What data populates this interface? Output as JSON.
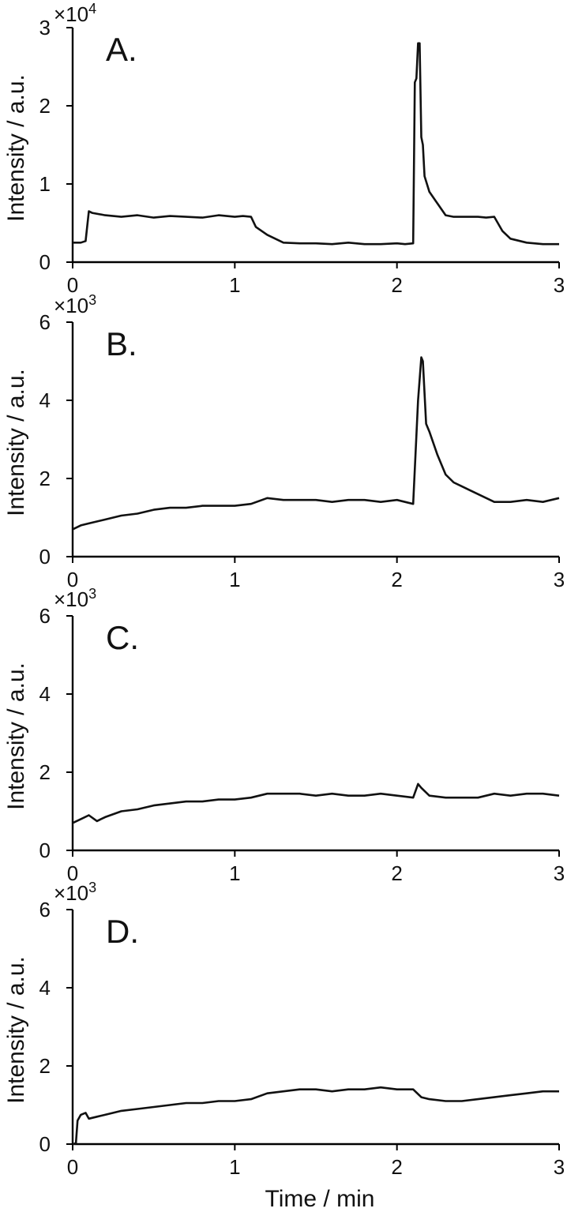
{
  "chart_data": [
    {
      "type": "line",
      "panel_label": "A.",
      "ylabel": "Intensity / a.u.",
      "multiplier": "×10",
      "multiplier_exp": "4",
      "xlim": [
        0,
        3
      ],
      "ylim": [
        0,
        3
      ],
      "xticks": [
        "0",
        "1",
        "2",
        "3"
      ],
      "yticks": [
        "0",
        "1",
        "2",
        "3"
      ],
      "series": [
        {
          "x": [
            0,
            0.05,
            0.08,
            0.1,
            0.12,
            0.2,
            0.3,
            0.4,
            0.5,
            0.6,
            0.7,
            0.8,
            0.9,
            1.0,
            1.05,
            1.1,
            1.13,
            1.2,
            1.3,
            1.4,
            1.5,
            1.6,
            1.7,
            1.8,
            1.9,
            2.0,
            2.05,
            2.1,
            2.11,
            2.12,
            2.13,
            2.14,
            2.15,
            2.16,
            2.17,
            2.2,
            2.25,
            2.3,
            2.35,
            2.4,
            2.5,
            2.55,
            2.6,
            2.65,
            2.7,
            2.8,
            2.9,
            3.0
          ],
          "y": [
            0.25,
            0.25,
            0.27,
            0.65,
            0.63,
            0.6,
            0.58,
            0.6,
            0.57,
            0.59,
            0.58,
            0.57,
            0.6,
            0.58,
            0.59,
            0.58,
            0.45,
            0.35,
            0.25,
            0.24,
            0.24,
            0.23,
            0.25,
            0.23,
            0.23,
            0.24,
            0.23,
            0.24,
            2.3,
            2.35,
            2.8,
            2.8,
            1.6,
            1.5,
            1.1,
            0.9,
            0.75,
            0.6,
            0.58,
            0.58,
            0.58,
            0.57,
            0.58,
            0.4,
            0.3,
            0.25,
            0.23,
            0.23
          ]
        }
      ]
    },
    {
      "type": "line",
      "panel_label": "B.",
      "ylabel": "Intensity / a.u.",
      "multiplier": "×10",
      "multiplier_exp": "3",
      "xlim": [
        0,
        3
      ],
      "ylim": [
        0,
        6
      ],
      "xticks": [
        "0",
        "1",
        "2",
        "3"
      ],
      "yticks": [
        "0",
        "2",
        "4",
        "6"
      ],
      "series": [
        {
          "x": [
            0,
            0.05,
            0.1,
            0.2,
            0.3,
            0.4,
            0.5,
            0.6,
            0.7,
            0.8,
            0.9,
            1.0,
            1.1,
            1.2,
            1.3,
            1.4,
            1.5,
            1.6,
            1.7,
            1.8,
            1.9,
            2.0,
            2.05,
            2.1,
            2.13,
            2.15,
            2.16,
            2.18,
            2.2,
            2.25,
            2.3,
            2.35,
            2.4,
            2.45,
            2.5,
            2.6,
            2.7,
            2.8,
            2.9,
            3.0
          ],
          "y": [
            0.7,
            0.8,
            0.85,
            0.95,
            1.05,
            1.1,
            1.2,
            1.25,
            1.25,
            1.3,
            1.3,
            1.3,
            1.35,
            1.5,
            1.45,
            1.45,
            1.45,
            1.4,
            1.45,
            1.45,
            1.4,
            1.45,
            1.4,
            1.35,
            4.0,
            5.1,
            5.0,
            3.4,
            3.2,
            2.6,
            2.1,
            1.9,
            1.8,
            1.7,
            1.6,
            1.4,
            1.4,
            1.45,
            1.4,
            1.5
          ]
        }
      ]
    },
    {
      "type": "line",
      "panel_label": "C.",
      "ylabel": "Intensity / a.u.",
      "multiplier": "×10",
      "multiplier_exp": "3",
      "xlim": [
        0,
        3
      ],
      "ylim": [
        0,
        6
      ],
      "xticks": [
        "0",
        "1",
        "2",
        "3"
      ],
      "yticks": [
        "0",
        "2",
        "4",
        "6"
      ],
      "series": [
        {
          "x": [
            0,
            0.05,
            0.1,
            0.15,
            0.2,
            0.3,
            0.4,
            0.5,
            0.6,
            0.7,
            0.8,
            0.9,
            1.0,
            1.1,
            1.2,
            1.3,
            1.4,
            1.5,
            1.6,
            1.7,
            1.8,
            1.9,
            2.0,
            2.1,
            2.13,
            2.15,
            2.2,
            2.3,
            2.4,
            2.5,
            2.6,
            2.7,
            2.8,
            2.9,
            3.0
          ],
          "y": [
            0.7,
            0.8,
            0.9,
            0.75,
            0.85,
            1.0,
            1.05,
            1.15,
            1.2,
            1.25,
            1.25,
            1.3,
            1.3,
            1.35,
            1.45,
            1.45,
            1.45,
            1.4,
            1.45,
            1.4,
            1.4,
            1.45,
            1.4,
            1.35,
            1.7,
            1.6,
            1.4,
            1.35,
            1.35,
            1.35,
            1.45,
            1.4,
            1.45,
            1.45,
            1.4
          ]
        }
      ]
    },
    {
      "type": "line",
      "panel_label": "D.",
      "ylabel": "Intensity / a.u.",
      "xlabel": "Time / min",
      "multiplier": "×10",
      "multiplier_exp": "3",
      "xlim": [
        0,
        3
      ],
      "ylim": [
        0,
        6
      ],
      "xticks": [
        "0",
        "1",
        "2",
        "3"
      ],
      "yticks": [
        "0",
        "2",
        "4",
        "6"
      ],
      "series": [
        {
          "x": [
            0,
            0.02,
            0.03,
            0.05,
            0.08,
            0.1,
            0.15,
            0.2,
            0.3,
            0.4,
            0.5,
            0.6,
            0.7,
            0.8,
            0.9,
            1.0,
            1.1,
            1.2,
            1.3,
            1.4,
            1.5,
            1.6,
            1.7,
            1.8,
            1.9,
            2.0,
            2.1,
            2.15,
            2.2,
            2.3,
            2.4,
            2.5,
            2.6,
            2.7,
            2.8,
            2.9,
            3.0
          ],
          "y": [
            0,
            0.02,
            0.6,
            0.75,
            0.8,
            0.65,
            0.7,
            0.75,
            0.85,
            0.9,
            0.95,
            1.0,
            1.05,
            1.05,
            1.1,
            1.1,
            1.15,
            1.3,
            1.35,
            1.4,
            1.4,
            1.35,
            1.4,
            1.4,
            1.45,
            1.4,
            1.4,
            1.2,
            1.15,
            1.1,
            1.1,
            1.15,
            1.2,
            1.25,
            1.3,
            1.35,
            1.35
          ]
        }
      ]
    }
  ]
}
